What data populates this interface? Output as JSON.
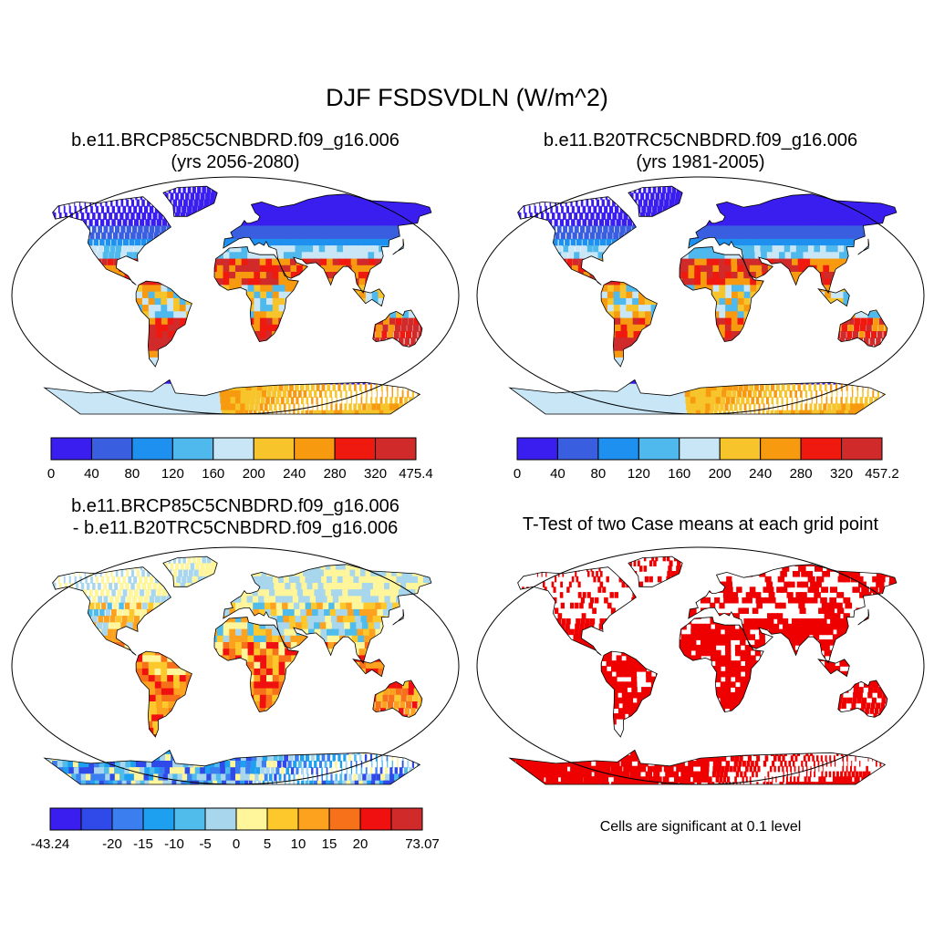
{
  "title": "DJF FSDSVDLN (W/m^2)",
  "panels": [
    {
      "title_line1": "b.e11.BRCP85C5CNBDRD.f09_g16.006",
      "title_line2": "(yrs 2056-2080)"
    },
    {
      "title_line1": "b.e11.B20TRC5CNBDRD.f09_g16.006",
      "title_line2": "(yrs 1981-2005)"
    },
    {
      "title_line1": "b.e11.BRCP85C5CNBDRD.f09_g16.006",
      "title_line2": "- b.e11.B20TRC5CNBDRD.f09_g16.006"
    },
    {
      "title_line1": "T-Test of two Case means at each grid point"
    }
  ],
  "colorbars": [
    {
      "colors": [
        "#3a1ef0",
        "#3a5ee0",
        "#1e90f0",
        "#4fb8ec",
        "#c8e6f5",
        "#f7c52b",
        "#f79a0f",
        "#f0190f",
        "#d02a2a"
      ],
      "labels": [
        "0",
        "40",
        "80",
        "120",
        "160",
        "200",
        "240",
        "280",
        "320",
        "475.4"
      ]
    },
    {
      "colors": [
        "#3a1ef0",
        "#3a5ee0",
        "#1e90f0",
        "#4fb8ec",
        "#c8e6f5",
        "#f7c52b",
        "#f79a0f",
        "#f0190f",
        "#d02a2a"
      ],
      "labels": [
        "0",
        "40",
        "80",
        "120",
        "160",
        "200",
        "240",
        "280",
        "320",
        "457.2"
      ]
    },
    {
      "colors": [
        "#3a1ef0",
        "#2f4ae8",
        "#3b7ef0",
        "#1ea0f0",
        "#4fbcec",
        "#a8d6ec",
        "#fff59a",
        "#fcc82b",
        "#fca21e",
        "#f7701a",
        "#f01010",
        "#d02a2a"
      ],
      "labels": [
        "-43.24",
        "",
        "-20",
        "-15",
        "-10",
        "-5",
        "0",
        "5",
        "10",
        "15",
        "20",
        "",
        "73.07"
      ]
    }
  ],
  "note": "Cells are significant at 0.1 level",
  "colors": {
    "ocean": "#ffffff",
    "signif": "#ee0000"
  },
  "palettes": {
    "abs": [
      "#3a1ef0",
      "#3a5ee0",
      "#1e90f0",
      "#4fb8ec",
      "#c8e6f5",
      "#f7c52b",
      "#f79a0f",
      "#f0190f",
      "#d02a2a"
    ],
    "diff": [
      "#3a1ef0",
      "#2f4ae8",
      "#3b7ef0",
      "#1ea0f0",
      "#4fbcec",
      "#a8d6ec",
      "#fff59a",
      "#fcc82b",
      "#fca21e",
      "#f7701a",
      "#f01010",
      "#d02a2a"
    ]
  }
}
